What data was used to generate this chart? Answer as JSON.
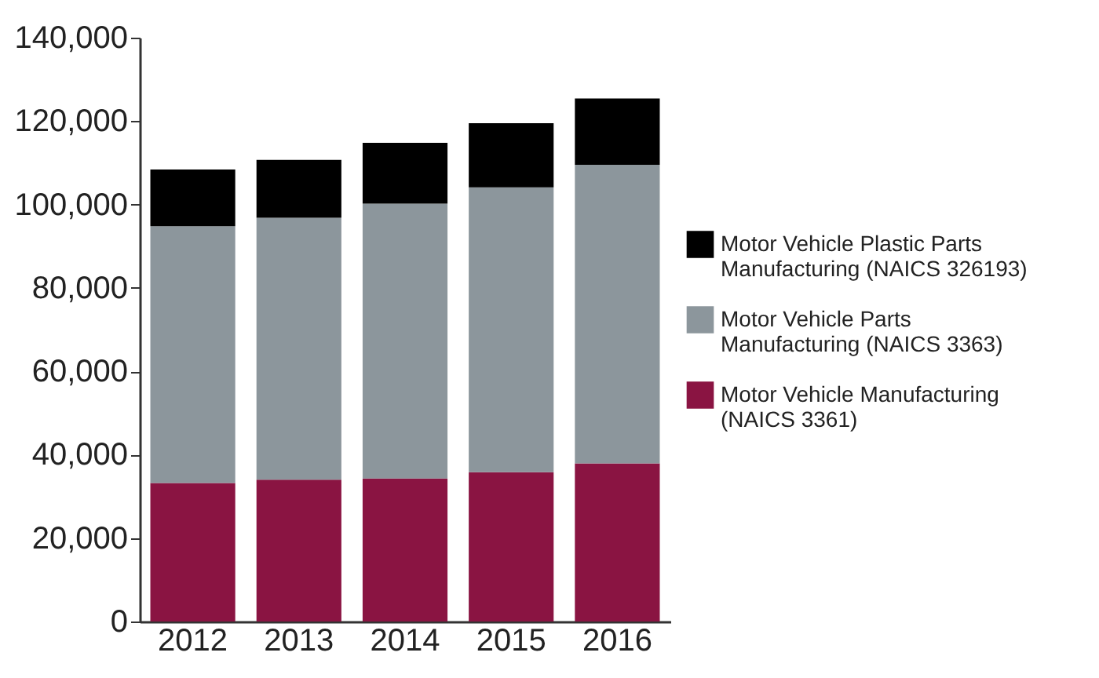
{
  "chart_data": {
    "type": "bar",
    "stacked": true,
    "categories": [
      "2012",
      "2013",
      "2014",
      "2015",
      "2016"
    ],
    "series": [
      {
        "name": "Motor Vehicle Manufacturing (NAICS 3361)",
        "color": "#8a1442",
        "values": [
          33200,
          34000,
          34300,
          35800,
          37900
        ]
      },
      {
        "name": "Motor Vehicle Parts Manufacturing (NAICS 3363)",
        "color": "#8c969c",
        "values": [
          61600,
          62800,
          65900,
          68300,
          71600
        ]
      },
      {
        "name": "Motor Vehicle Plastic Parts Manufacturing (NAICS 326193)",
        "color": "#000000",
        "values": [
          13600,
          13900,
          14600,
          15400,
          15900
        ]
      }
    ],
    "ylim": [
      0,
      140000
    ],
    "yticks": [
      0,
      {
        "value": 20000,
        "label": "20,000"
      },
      {
        "value": 40000,
        "label": "40,000"
      },
      {
        "value": 60000,
        "label": "60,000"
      },
      {
        "value": 80000,
        "label": "80,000"
      },
      {
        "value": 100000,
        "label": "100,000"
      },
      {
        "value": 120000,
        "label": "120,000"
      },
      {
        "value": 140000,
        "label": "140,000"
      }
    ],
    "grid": false,
    "legend": "right"
  }
}
